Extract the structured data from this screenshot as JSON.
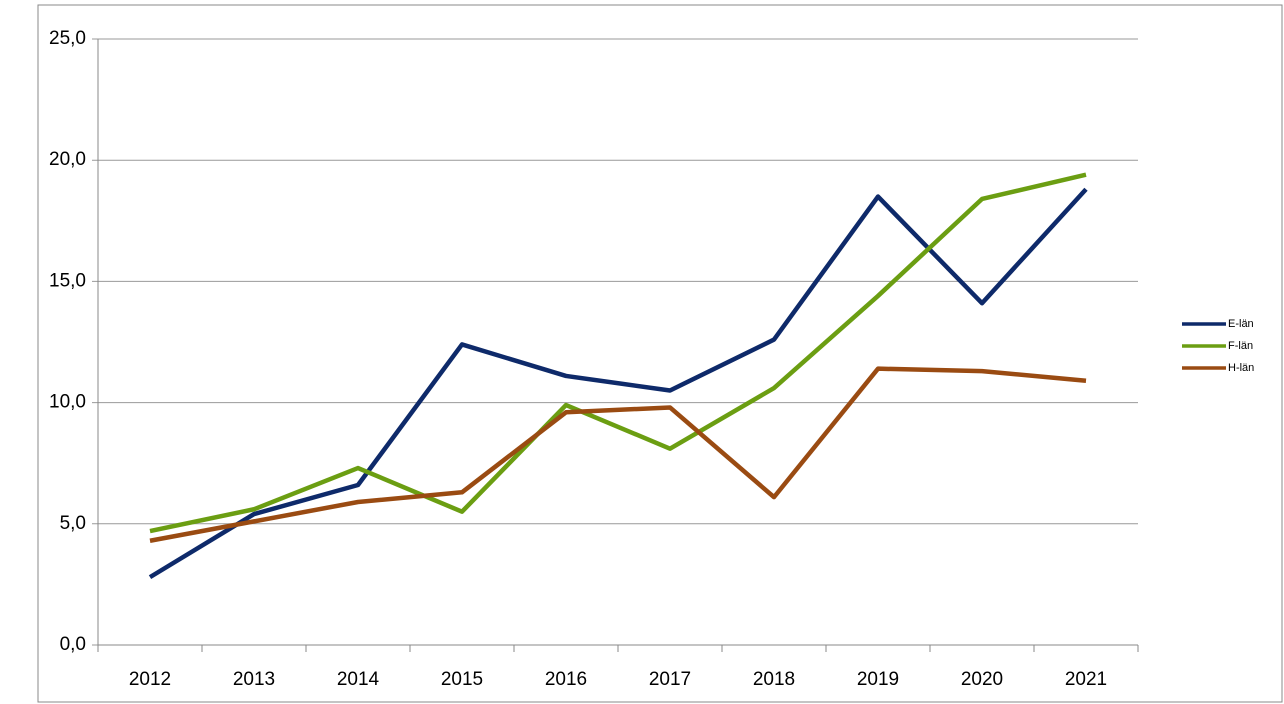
{
  "chart_data": {
    "type": "line",
    "categories": [
      "2012",
      "2013",
      "2014",
      "2015",
      "2016",
      "2017",
      "2018",
      "2019",
      "2020",
      "2021"
    ],
    "series": [
      {
        "name": "E-län",
        "color": "#0e2a6a",
        "values": [
          2.8,
          5.4,
          6.6,
          12.4,
          11.1,
          10.5,
          12.6,
          18.5,
          14.1,
          18.8
        ]
      },
      {
        "name": "F-län",
        "color": "#6b9e12",
        "values": [
          4.7,
          5.6,
          7.3,
          5.5,
          9.9,
          8.1,
          10.6,
          14.4,
          18.4,
          19.4
        ]
      },
      {
        "name": "H-län",
        "color": "#9a4b12",
        "values": [
          4.3,
          5.1,
          5.9,
          6.3,
          9.6,
          9.8,
          6.1,
          11.4,
          11.3,
          10.9
        ]
      }
    ],
    "ylim": [
      0,
      25
    ],
    "yticks": [
      {
        "value": 0,
        "label": "0,0"
      },
      {
        "value": 5,
        "label": "5,0"
      },
      {
        "value": 10,
        "label": "10,0"
      },
      {
        "value": 15,
        "label": "15,0"
      },
      {
        "value": 20,
        "label": "20,0"
      },
      {
        "value": 25,
        "label": "25,0"
      }
    ],
    "grid": true,
    "legend": "right"
  }
}
